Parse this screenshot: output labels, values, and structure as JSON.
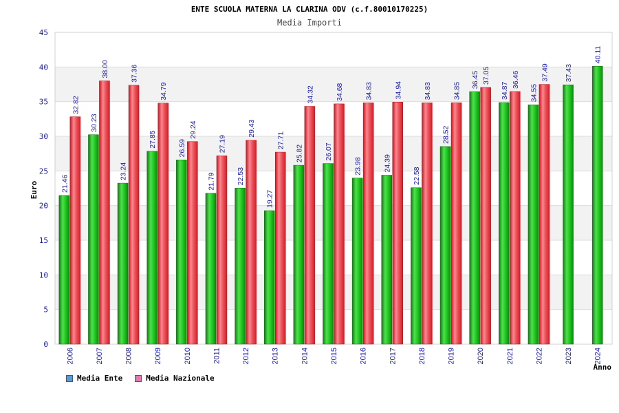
{
  "chart_data": {
    "type": "bar",
    "title": "ENTE SCUOLA MATERNA LA CLARINA ODV (c.f.80010170225)",
    "subtitle": "Media Importi",
    "xlabel": "Anno",
    "ylabel": "Euro",
    "ylim": [
      0,
      45
    ],
    "yticks": [
      0,
      5,
      10,
      15,
      20,
      25,
      30,
      35,
      40,
      45
    ],
    "grid": true,
    "legend_position": "bottom-left",
    "categories": [
      "2006",
      "2007",
      "2008",
      "2009",
      "2010",
      "2011",
      "2012",
      "2013",
      "2014",
      "2015",
      "2016",
      "2017",
      "2018",
      "2019",
      "2020",
      "2021",
      "2022",
      "2023",
      "2024"
    ],
    "series": [
      {
        "name": "Media Ente",
        "color": "#22b822",
        "legend_color": "#5b9bd5",
        "values": [
          21.46,
          30.23,
          23.24,
          27.85,
          26.59,
          21.79,
          22.53,
          19.27,
          25.82,
          26.07,
          23.98,
          24.39,
          22.58,
          28.52,
          36.45,
          34.87,
          34.55,
          37.43,
          40.11
        ],
        "labels": [
          "21.46",
          "30.23",
          "23.24",
          "27.85",
          "26.59",
          "21.79",
          "22.53",
          "19.27",
          "25.82",
          "26.07",
          "23.98",
          "24.39",
          "22.58",
          "28.52",
          "36.45",
          "34.87",
          "34.55",
          "37.43",
          "40.11"
        ]
      },
      {
        "name": "Media Nazionale",
        "color": "#e8303a",
        "legend_color": "#e07ab0",
        "values": [
          32.82,
          38.0,
          37.36,
          34.79,
          29.24,
          27.19,
          29.43,
          27.71,
          34.32,
          34.68,
          34.83,
          34.94,
          34.83,
          34.85,
          37.05,
          36.46,
          37.49,
          null,
          null
        ],
        "labels": [
          "32.82",
          "38.00",
          "37.36",
          "34.79",
          "29.24",
          "27.19",
          "29.43",
          "27.71",
          "34.32",
          "34.68",
          "34.83",
          "34.94",
          "34.83",
          "34.85",
          "37.05",
          "36.46",
          "37.49",
          null,
          null
        ]
      }
    ]
  }
}
